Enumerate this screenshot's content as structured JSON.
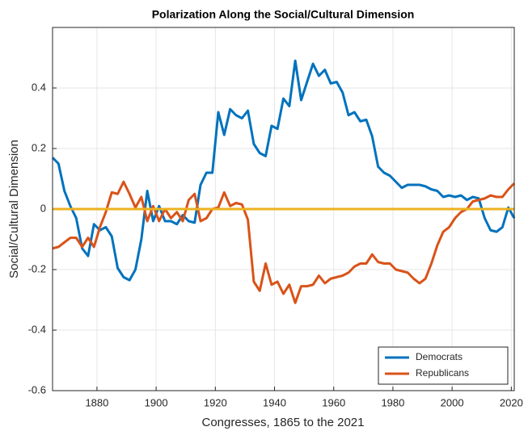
{
  "chart_data": {
    "type": "line",
    "title": "Polarization Along the Social/Cultural Dimension",
    "xlabel": "Congresses, 1865 to the 2021",
    "ylabel": "Social/Cultural Dimension",
    "x": [
      1865,
      1867,
      1869,
      1871,
      1873,
      1875,
      1877,
      1879,
      1881,
      1883,
      1885,
      1887,
      1889,
      1891,
      1893,
      1895,
      1897,
      1899,
      1901,
      1903,
      1905,
      1907,
      1909,
      1911,
      1913,
      1915,
      1917,
      1919,
      1921,
      1923,
      1925,
      1927,
      1929,
      1931,
      1933,
      1935,
      1937,
      1939,
      1941,
      1943,
      1945,
      1947,
      1949,
      1951,
      1953,
      1955,
      1957,
      1959,
      1961,
      1963,
      1965,
      1967,
      1969,
      1971,
      1973,
      1975,
      1977,
      1979,
      1981,
      1983,
      1985,
      1987,
      1989,
      1991,
      1993,
      1995,
      1997,
      1999,
      2001,
      2003,
      2005,
      2007,
      2009,
      2011,
      2013,
      2015,
      2017,
      2019,
      2021
    ],
    "series": [
      {
        "name": "Democrats",
        "color": "#0072BD",
        "values": [
          0.17,
          0.15,
          0.06,
          0.01,
          -0.03,
          -0.13,
          -0.155,
          -0.05,
          -0.07,
          -0.06,
          -0.09,
          -0.195,
          -0.225,
          -0.235,
          -0.2,
          -0.1,
          0.06,
          -0.04,
          0.01,
          -0.04,
          -0.04,
          -0.05,
          -0.02,
          -0.04,
          -0.045,
          0.08,
          0.12,
          0.12,
          0.32,
          0.245,
          0.33,
          0.31,
          0.3,
          0.325,
          0.215,
          0.185,
          0.175,
          0.275,
          0.265,
          0.365,
          0.34,
          0.49,
          0.36,
          0.42,
          0.48,
          0.44,
          0.46,
          0.415,
          0.42,
          0.385,
          0.31,
          0.32,
          0.29,
          0.295,
          0.24,
          0.14,
          0.12,
          0.11,
          0.09,
          0.07,
          0.08,
          0.08,
          0.08,
          0.075,
          0.065,
          0.06,
          0.04,
          0.045,
          0.04,
          0.045,
          0.03,
          0.04,
          0.035,
          -0.03,
          -0.07,
          -0.075,
          -0.06,
          0.005,
          -0.03
        ]
      },
      {
        "name": "Republicans",
        "color": "#D95319",
        "values": [
          -0.13,
          -0.125,
          -0.11,
          -0.095,
          -0.095,
          -0.125,
          -0.095,
          -0.125,
          -0.06,
          -0.01,
          0.055,
          0.05,
          0.09,
          0.05,
          0.005,
          0.04,
          -0.04,
          0.01,
          -0.04,
          0.0,
          -0.03,
          -0.01,
          -0.04,
          0.03,
          0.05,
          -0.04,
          -0.03,
          0.0,
          0.005,
          0.055,
          0.01,
          0.02,
          0.015,
          -0.035,
          -0.24,
          -0.27,
          -0.18,
          -0.25,
          -0.24,
          -0.28,
          -0.25,
          -0.31,
          -0.255,
          -0.255,
          -0.25,
          -0.22,
          -0.245,
          -0.23,
          -0.225,
          -0.22,
          -0.21,
          -0.19,
          -0.18,
          -0.18,
          -0.15,
          -0.175,
          -0.18,
          -0.18,
          -0.2,
          -0.205,
          -0.21,
          -0.23,
          -0.245,
          -0.23,
          -0.18,
          -0.12,
          -0.075,
          -0.06,
          -0.03,
          -0.01,
          0.0,
          0.025,
          0.03,
          0.035,
          0.045,
          0.04,
          0.04,
          0.065,
          0.085
        ]
      }
    ],
    "reference_line": {
      "value": 0,
      "color": "#EDB120"
    },
    "xlim": [
      1865,
      2021
    ],
    "ylim": [
      -0.6,
      0.6
    ],
    "xticks": [
      1880,
      1900,
      1920,
      1940,
      1960,
      1980,
      2000,
      2020
    ],
    "yticks": [
      -0.6,
      -0.4,
      -0.2,
      0,
      0.2,
      0.4
    ],
    "grid": true,
    "legend": "lower right"
  }
}
